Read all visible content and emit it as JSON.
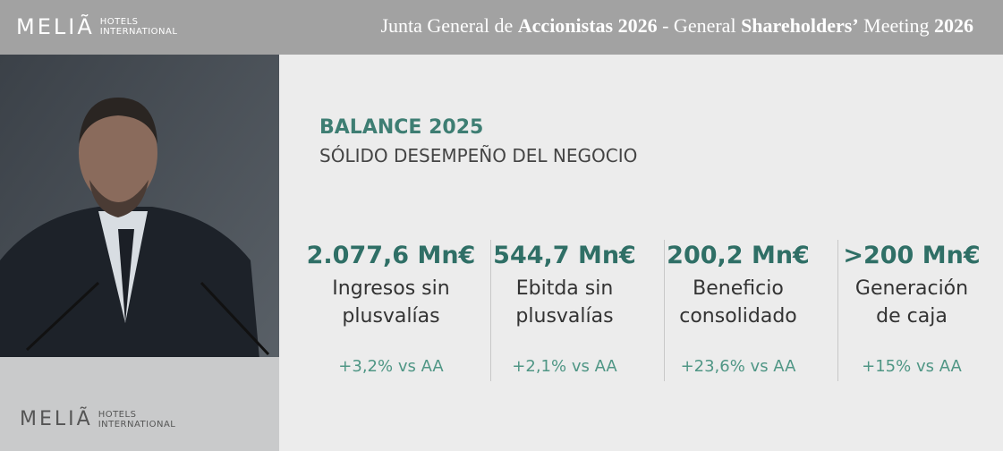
{
  "header": {
    "logo_name": "MELIÃ",
    "logo_sub": [
      "HOTELS",
      "INTERNATIONAL"
    ],
    "title": [
      {
        "text": "Junta General de ",
        "bold": false
      },
      {
        "text": "Accionistas 2026",
        "bold": true
      },
      {
        "text": " - General ",
        "bold": false
      },
      {
        "text": "Shareholders’",
        "bold": true
      },
      {
        "text": " Meeting ",
        "bold": false
      },
      {
        "text": "2026",
        "bold": true
      }
    ]
  },
  "podium": {
    "logo_name": "MELIÃ",
    "logo_sub": [
      "HOTELS",
      "INTERNATIONAL"
    ]
  },
  "slide": {
    "title": "BALANCE 2025",
    "subtitle": "SÓLIDO DESEMPEÑO DEL NEGOCIO",
    "kpis": [
      {
        "value": "2.077,6 Mn€",
        "label": [
          "Ingresos sin",
          "plusvalías"
        ],
        "change": "+3,2% vs AA"
      },
      {
        "value": "544,7 Mn€",
        "label": [
          "Ebitda sin",
          "plusvalías"
        ],
        "change": "+2,1% vs AA"
      },
      {
        "value": "200,2 Mn€",
        "label": [
          "Beneficio",
          "consolidado"
        ],
        "change": "+23,6% vs AA"
      },
      {
        "value": ">200 Mn€",
        "label": [
          "Generación",
          "de caja"
        ],
        "change": "+15% vs AA"
      }
    ]
  }
}
